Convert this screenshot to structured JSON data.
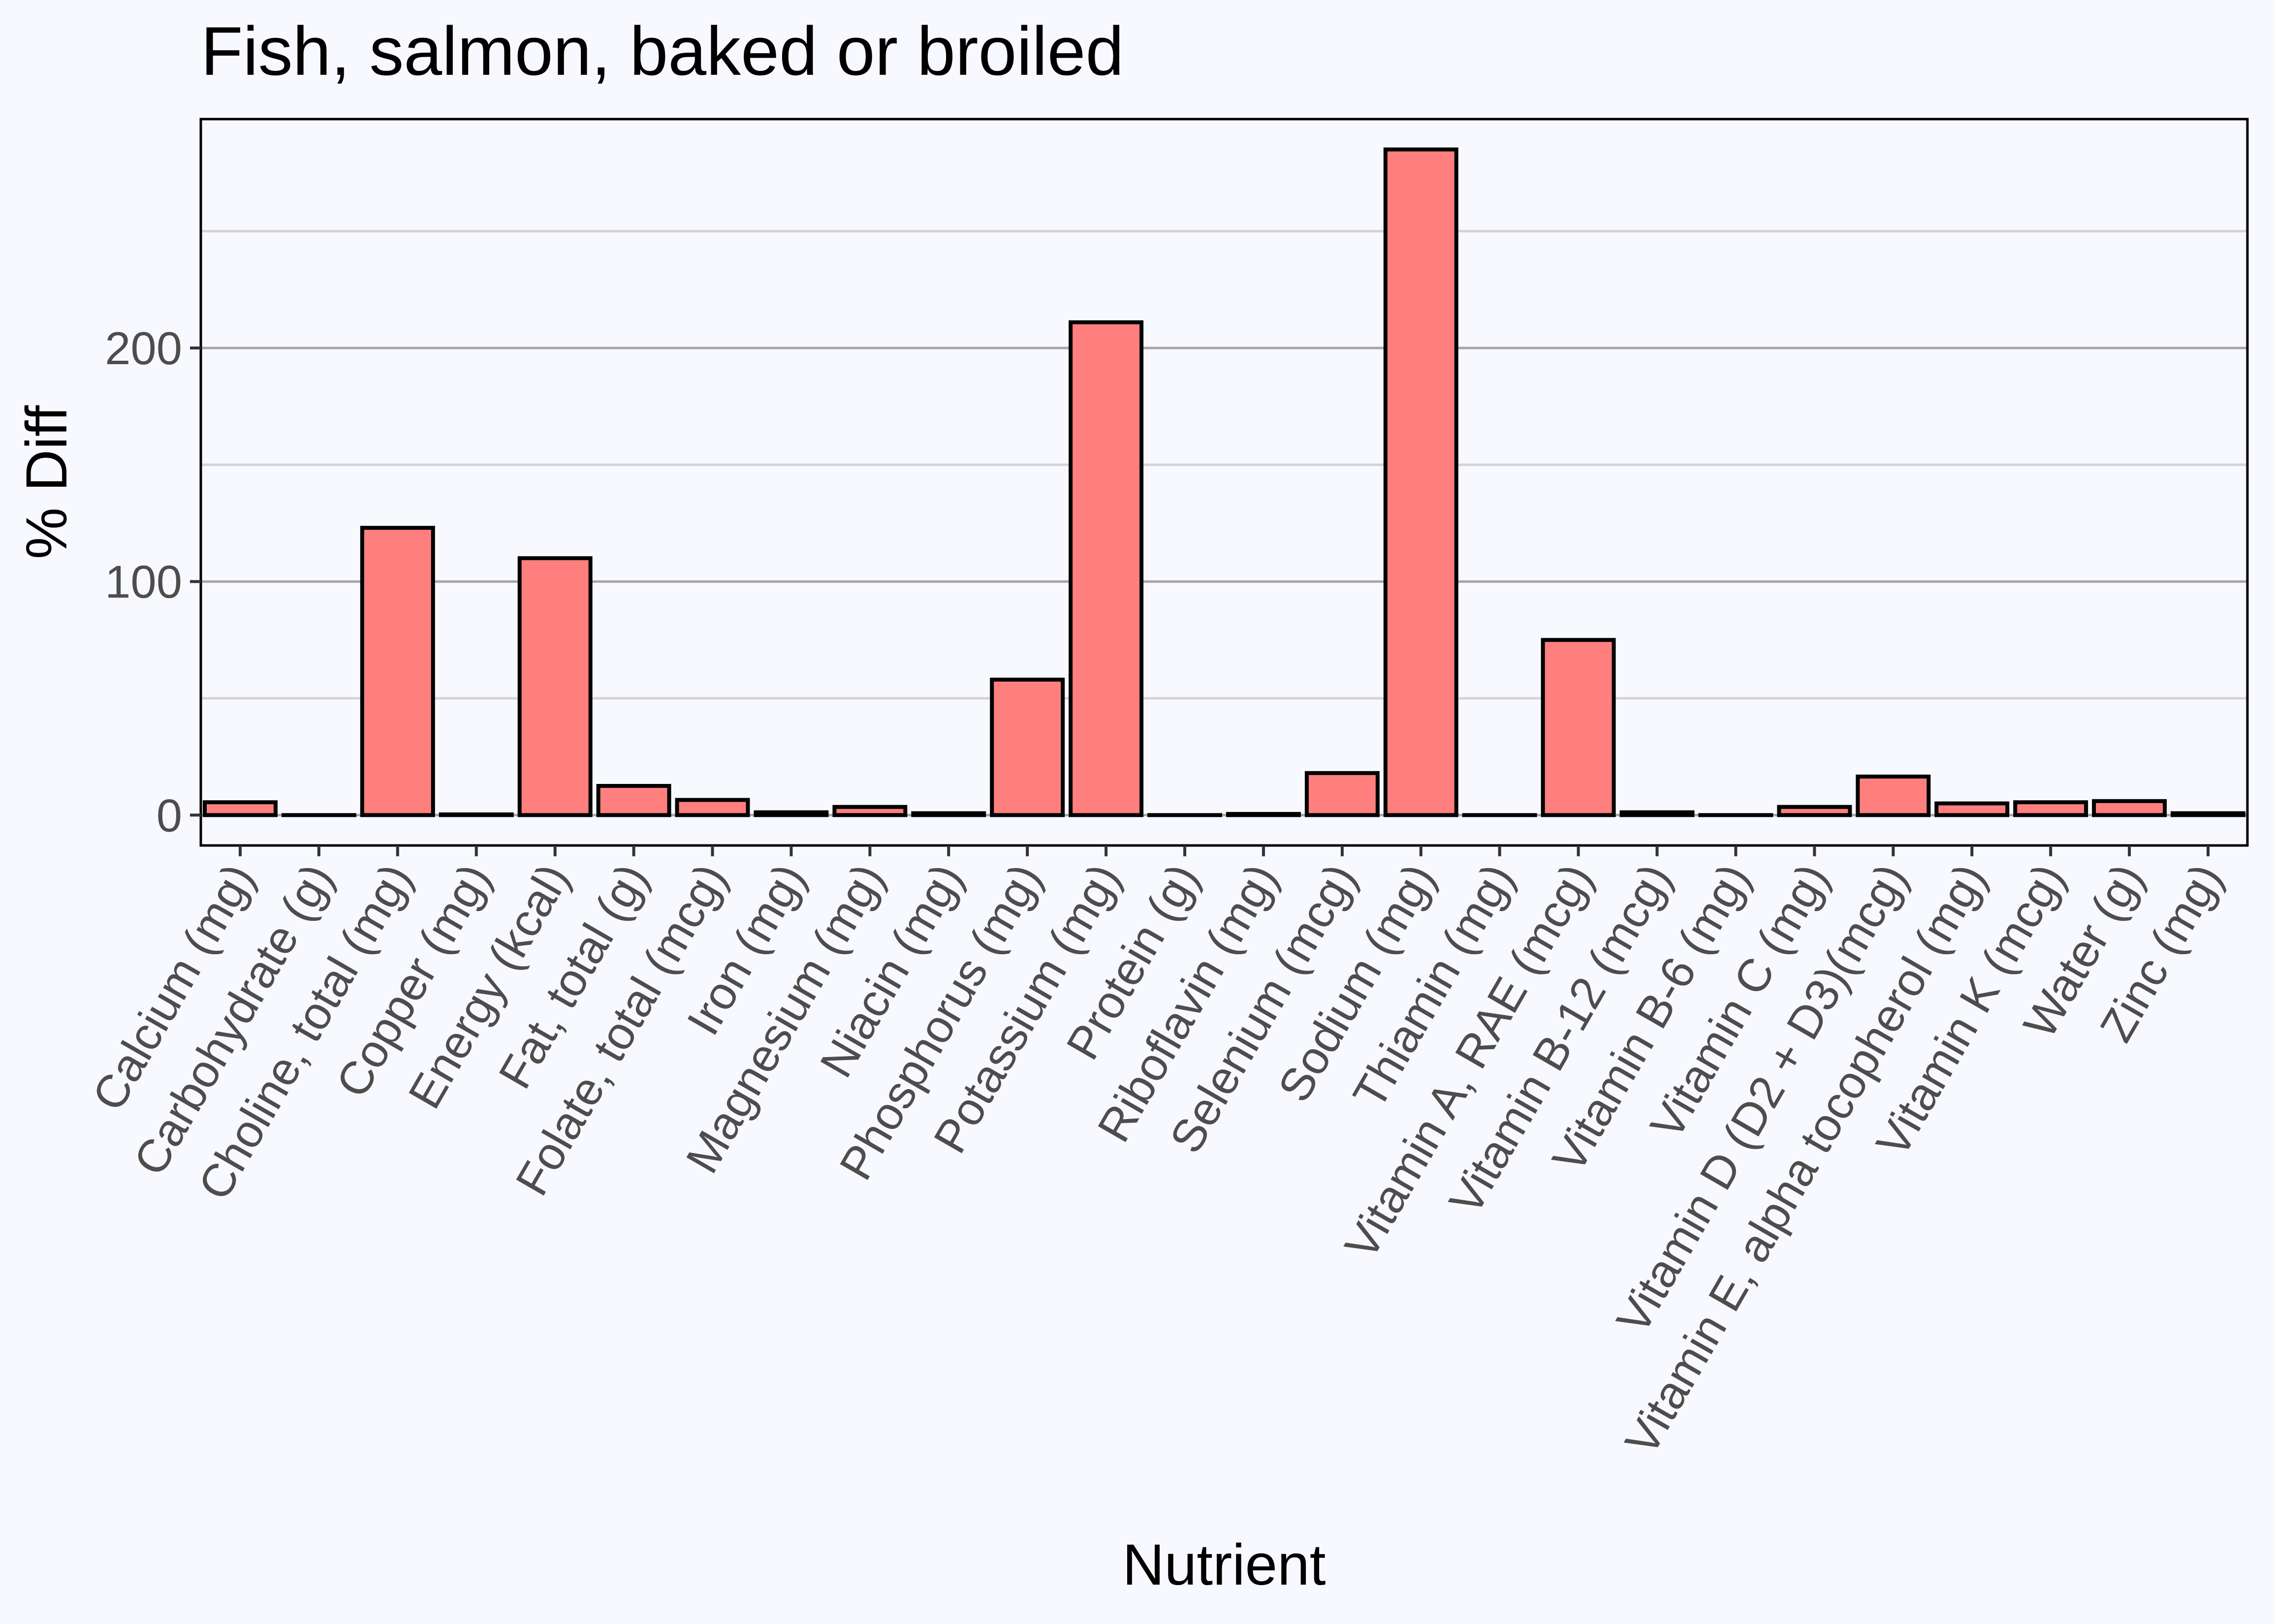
{
  "chart_data": {
    "type": "bar",
    "title": "Fish, salmon, baked or broiled",
    "xlabel": "Nutrient",
    "ylabel": "% Diff",
    "categories": [
      "Calcium (mg)",
      "Carbohydrate (g)",
      "Choline, total (mg)",
      "Copper (mg)",
      "Energy (kcal)",
      "Fat, total (g)",
      "Folate, total (mcg)",
      "Iron (mg)",
      "Magnesium (mg)",
      "Niacin (mg)",
      "Phosphorus (mg)",
      "Potassium (mg)",
      "Protein (g)",
      "Riboflavin (mg)",
      "Selenium (mcg)",
      "Sodium (mg)",
      "Thiamin (mg)",
      "Vitamin A, RAE (mcg)",
      "Vitamin B-12 (mcg)",
      "Vitamin B-6 (mg)",
      "Vitamin C (mg)",
      "Vitamin D (D2 + D3)(mcg)",
      "Vitamin E, alpha tocopherol (mg)",
      "Vitamin K (mcg)",
      "Water (g)",
      "Zinc (mg)"
    ],
    "values": [
      5.5,
      0,
      123,
      0.3,
      110,
      12.5,
      6.5,
      1.2,
      3.5,
      0.8,
      58,
      211,
      0,
      0.5,
      18,
      285,
      0,
      75,
      1.2,
      0,
      3.5,
      16.5,
      5,
      5.5,
      6,
      0.8
    ],
    "yticks": [
      0,
      100,
      200
    ],
    "ylim": [
      -13,
      298
    ],
    "grid": true,
    "colors": {
      "bar_fill": "#FF7F7F",
      "bar_stroke": "#000000",
      "background": "#F8F9FE"
    }
  }
}
